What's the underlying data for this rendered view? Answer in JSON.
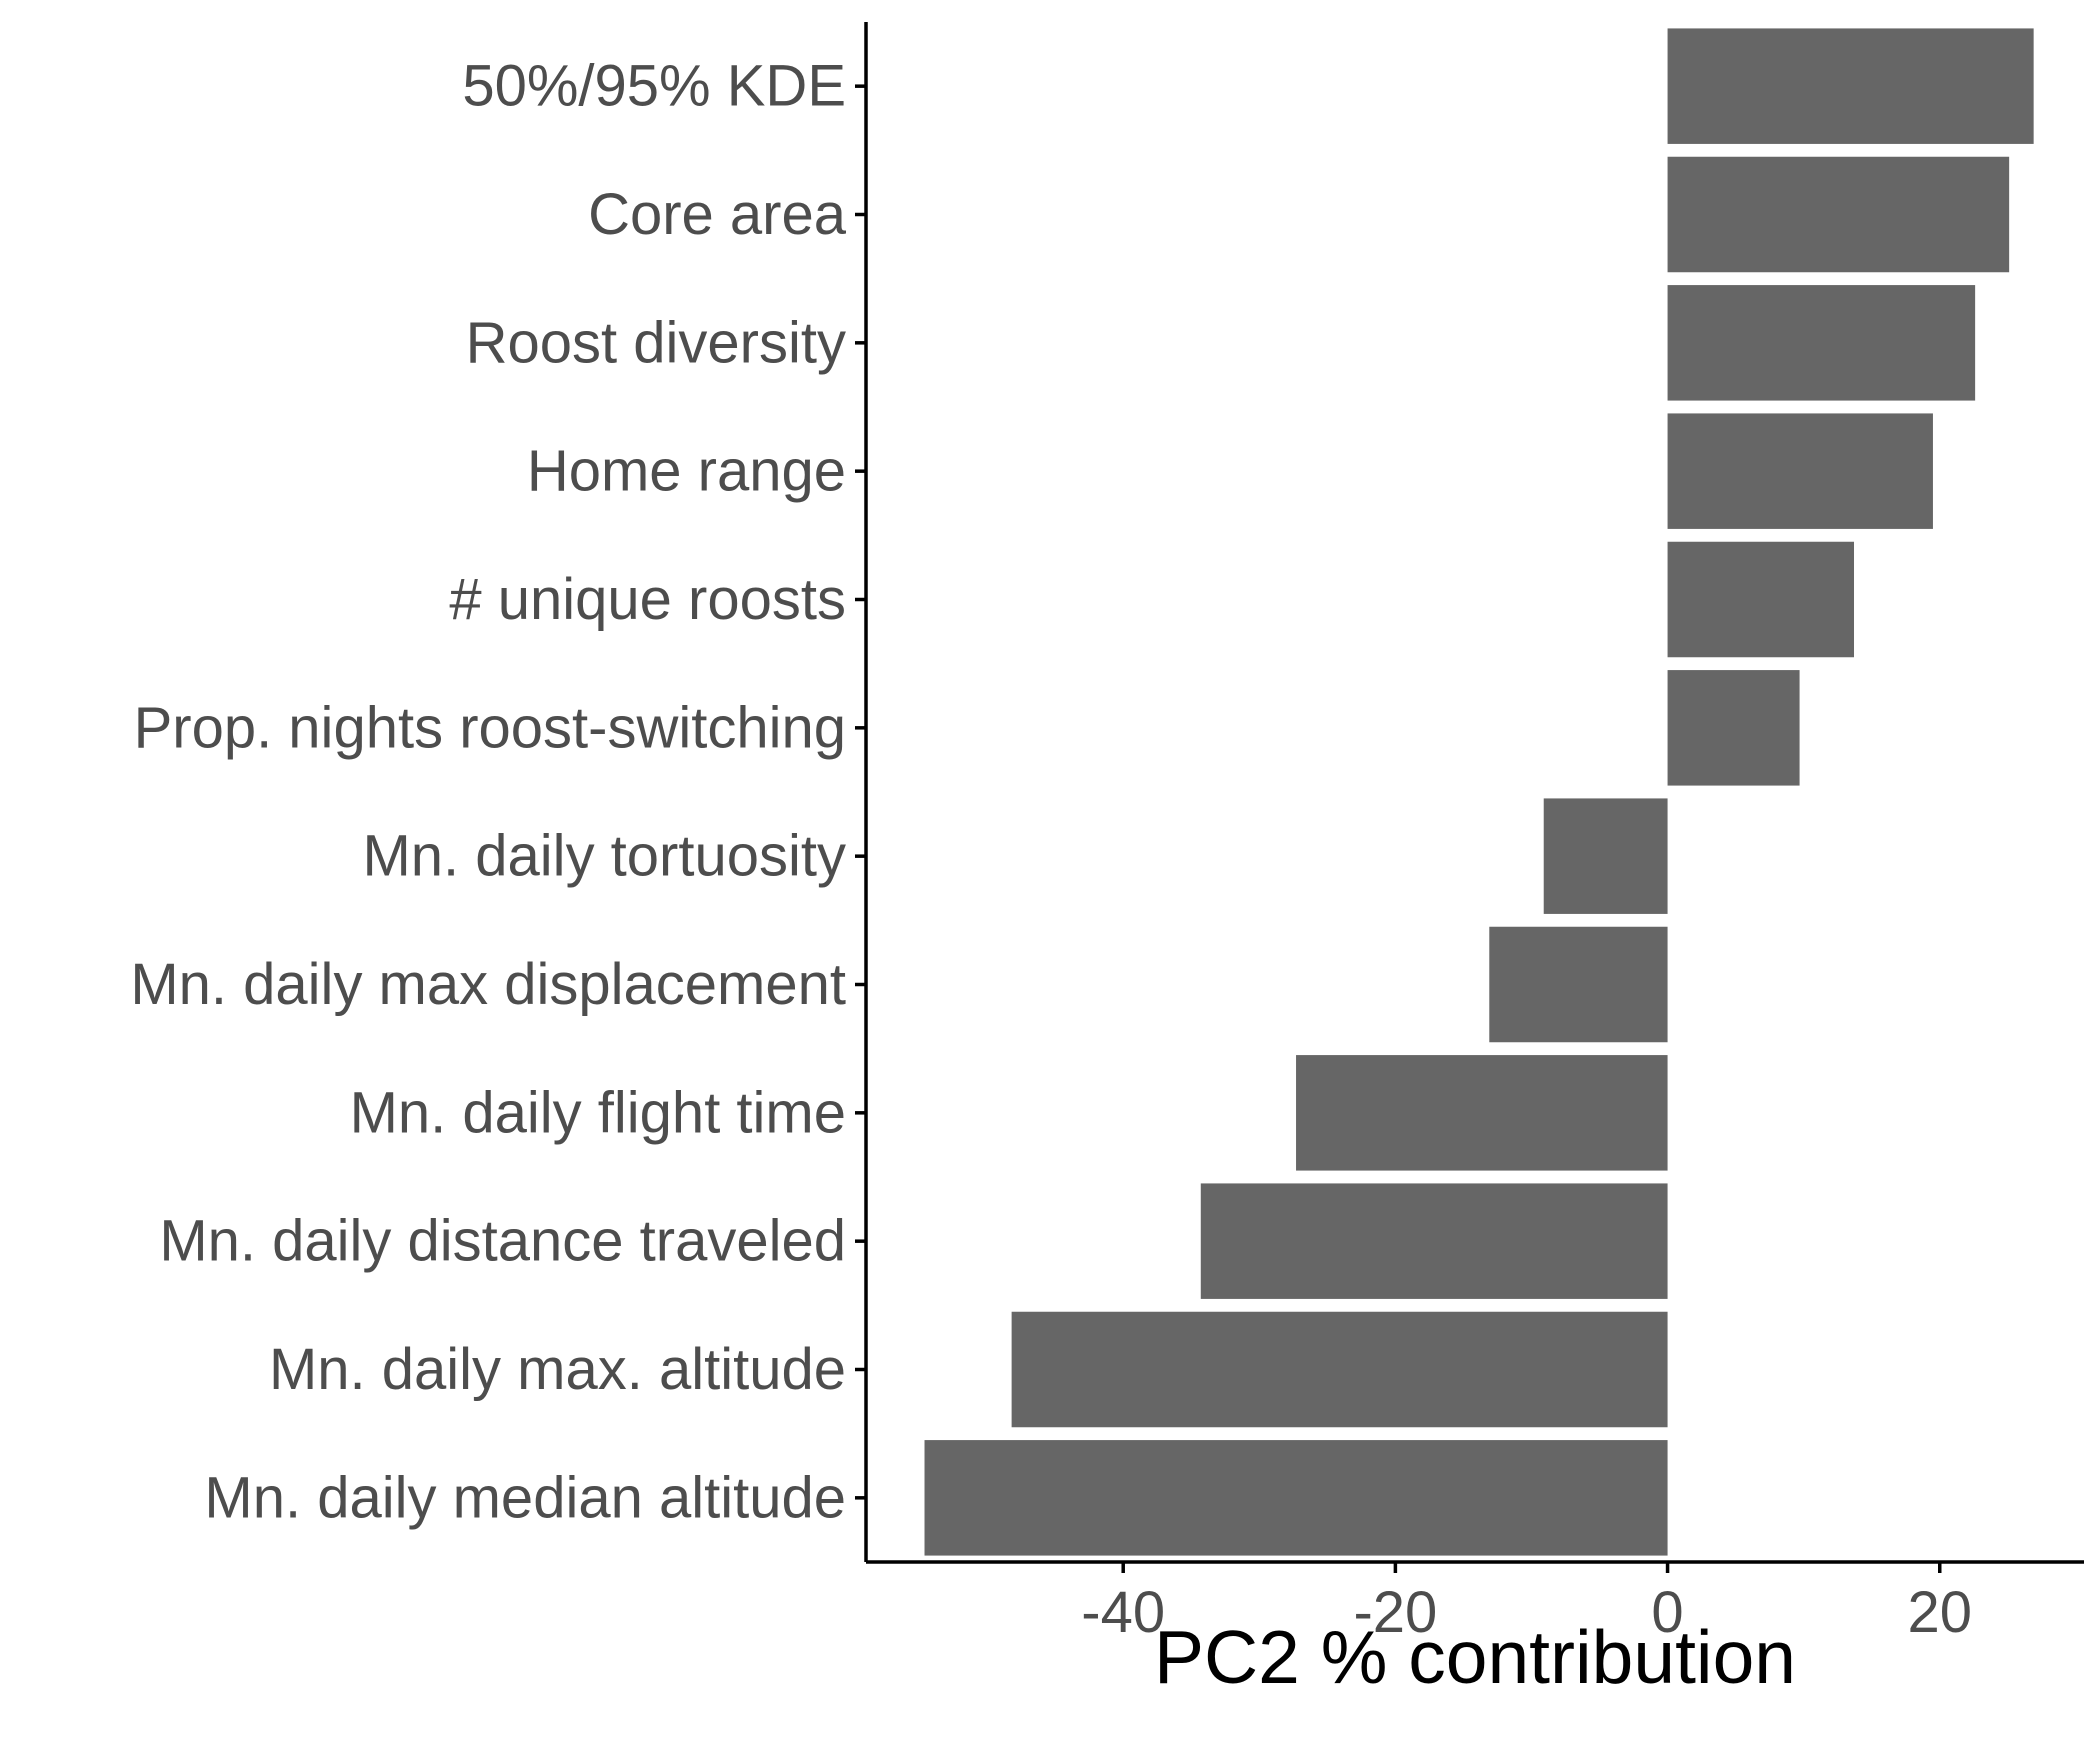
{
  "chart_data": {
    "type": "bar",
    "orientation": "horizontal",
    "categories": [
      "50%/95% KDE",
      "Core area",
      "Roost diversity",
      "Home range",
      "# unique roosts",
      "Prop. nights roost-switching",
      "Mn. daily tortuosity",
      "Mn. daily max displacement",
      "Mn. daily flight time",
      "Mn. daily distance traveled",
      "Mn. daily max. altitude",
      "Mn. daily median altitude"
    ],
    "values": [
      26.9,
      25.1,
      22.6,
      19.5,
      13.7,
      9.7,
      -9.1,
      -13.1,
      -27.3,
      -34.3,
      -48.2,
      -54.6
    ],
    "xlabel": "PC2 % contribution",
    "ylabel": "",
    "xlim": [
      -58.9,
      30.6
    ],
    "xticks": [
      -40,
      -20,
      0,
      20
    ],
    "xtick_labels": [
      "-40",
      "-20",
      "0",
      "20"
    ],
    "grid": false,
    "bar_color": "#666666",
    "axis_color": "#000000",
    "label_color": "#4d4d4d"
  }
}
